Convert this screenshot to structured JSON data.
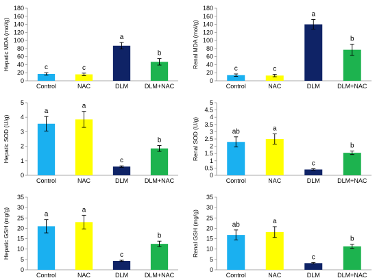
{
  "colors": {
    "Control": "#1ab0f0",
    "NAC": "#ffff00",
    "DLM": "#0f2366",
    "DLM+NAC": "#1db34f",
    "axis": "#8c8c8c",
    "error_bar": "#000000"
  },
  "chart_data": [
    {
      "type": "bar",
      "ylabel": "Hepatic MDA (mol/g)",
      "categories": [
        "Control",
        "NAC",
        "DLM",
        "DLM+NAC"
      ],
      "values": [
        17,
        16,
        87,
        47
      ],
      "errors": [
        3,
        3,
        8,
        8
      ],
      "letters": [
        "c",
        "c",
        "a",
        "b"
      ],
      "ylim": [
        0,
        180
      ],
      "yticks": [
        "0",
        "20",
        "40",
        "60",
        "80",
        "100",
        "120",
        "140",
        "160",
        "180"
      ],
      "grid": false
    },
    {
      "type": "bar",
      "ylabel": "Renal MDA (mol/g)",
      "categories": [
        "Control",
        "NAC",
        "DLM",
        "DLM+NAC"
      ],
      "values": [
        14,
        13,
        140,
        77
      ],
      "errors": [
        3,
        3,
        12,
        14
      ],
      "letters": [
        "c",
        "c",
        "a",
        "b"
      ],
      "ylim": [
        0,
        180
      ],
      "yticks": [
        "0",
        "20",
        "40",
        "60",
        "80",
        "100",
        "120",
        "140",
        "160",
        "180"
      ],
      "grid": false
    },
    {
      "type": "bar",
      "ylabel": "Hepatic SOD (U/g)",
      "categories": [
        "Control",
        "NAC",
        "DLM",
        "DLM+NAC"
      ],
      "values": [
        3.55,
        3.85,
        0.6,
        1.85
      ],
      "errors": [
        0.5,
        0.55,
        0.05,
        0.2
      ],
      "letters": [
        "a",
        "a",
        "c",
        "b"
      ],
      "ylim": [
        0,
        5
      ],
      "yticks": [
        "0",
        "1",
        "2",
        "3",
        "4",
        "5"
      ],
      "grid": false
    },
    {
      "type": "bar",
      "ylabel": "Renal SOD (U/g)",
      "categories": [
        "Control",
        "NAC",
        "DLM",
        "DLM+NAC"
      ],
      "values": [
        2.3,
        2.5,
        0.4,
        1.55
      ],
      "errors": [
        0.35,
        0.35,
        0.05,
        0.12
      ],
      "letters": [
        "ab",
        "a",
        "c",
        "b"
      ],
      "ylim": [
        0,
        5
      ],
      "yticks": [
        "0",
        "0.5",
        "1",
        "1.5",
        "2",
        "2.5",
        "3",
        "3.5",
        "4",
        "4.5",
        "5"
      ],
      "grid": false
    },
    {
      "type": "bar",
      "ylabel": "Hepatic GSH (mg/g)",
      "categories": [
        "Control",
        "NAC",
        "DLM",
        "DLM+NAC"
      ],
      "values": [
        21,
        23,
        4.3,
        12.5
      ],
      "errors": [
        3.2,
        3.3,
        0.3,
        1.3
      ],
      "letters": [
        "a",
        "a",
        "c",
        "b"
      ],
      "ylim": [
        0,
        35
      ],
      "yticks": [
        "0",
        "5",
        "10",
        "15",
        "20",
        "25",
        "30",
        "35"
      ],
      "grid": false
    },
    {
      "type": "bar",
      "ylabel": "Renal GSH (mg/g)",
      "categories": [
        "Control",
        "NAC",
        "DLM",
        "DLM+NAC"
      ],
      "values": [
        16.8,
        18.2,
        3.2,
        11.3
      ],
      "errors": [
        2.4,
        2.6,
        0.3,
        1
      ],
      "letters": [
        "ab",
        "a",
        "c",
        "b"
      ],
      "ylim": [
        0,
        35
      ],
      "yticks": [
        "0",
        "5",
        "10",
        "15",
        "20",
        "25",
        "30",
        "35"
      ],
      "grid": false
    }
  ]
}
